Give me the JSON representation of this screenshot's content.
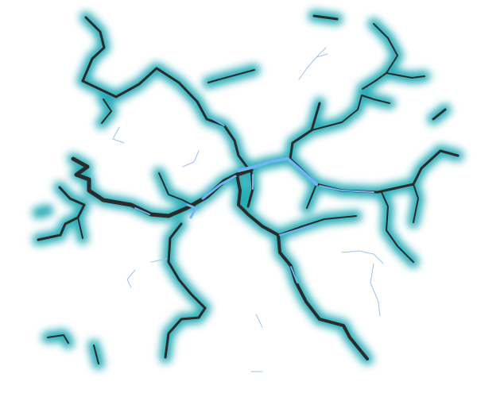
{
  "image": {
    "subject": "crack-pattern",
    "colors": {
      "background": "#ffffff",
      "glow": "#1aa9b4",
      "crack": "#2b2b2b",
      "highlight": "#6fb6f2",
      "hairline": "#9fc6ee"
    }
  }
}
